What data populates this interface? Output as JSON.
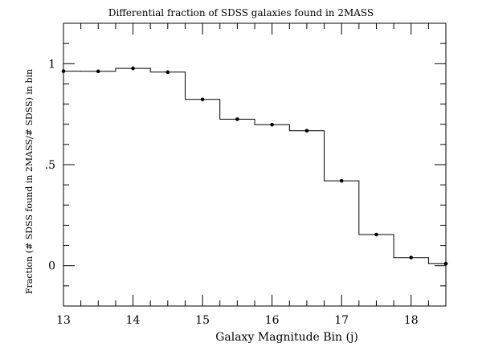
{
  "chart_data": {
    "type": "line",
    "title": "Differential fraction of SDSS galaxies found in 2MASS",
    "xlabel": "Galaxy Magnitude Bin (j)",
    "ylabel": "Fraction (# SDSS found in 2MASS/# SDSS) in bin",
    "xlim": [
      13,
      18.5
    ],
    "ylim": [
      -0.2,
      1.2
    ],
    "x_ticks": [
      {
        "value": 13,
        "label": "13"
      },
      {
        "value": 14,
        "label": "14"
      },
      {
        "value": 15,
        "label": "15"
      },
      {
        "value": 16,
        "label": "16"
      },
      {
        "value": 17,
        "label": "17"
      },
      {
        "value": 18,
        "label": "18"
      }
    ],
    "y_ticks": [
      {
        "value": 0,
        "label": "0"
      },
      {
        "value": 0.5,
        "label": ".5"
      },
      {
        "value": 1,
        "label": "1"
      }
    ],
    "series": [
      {
        "x": [
          13.0,
          13.5,
          14.0,
          14.5,
          15.0,
          15.5,
          16.0,
          16.5,
          17.0,
          17.5,
          18.0,
          18.5
        ],
        "values": [
          0.963,
          0.962,
          0.977,
          0.958,
          0.823,
          0.725,
          0.698,
          0.668,
          0.42,
          0.154,
          0.04,
          0.01
        ]
      }
    ],
    "step_style": "mid-step histogram with point markers",
    "grid": false,
    "legend": "none"
  }
}
